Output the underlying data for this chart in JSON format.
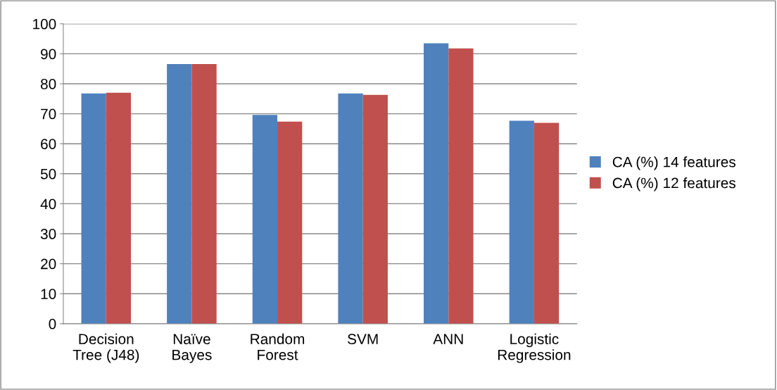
{
  "chart_data": {
    "type": "bar",
    "categories": [
      "Decision\nTree (J48)",
      "Naïve\nBayes",
      "Random\nForest",
      "SVM",
      "ANN",
      "Logistic\nRegression"
    ],
    "series": [
      {
        "name": "CA (%) 14 features",
        "color": "#4f81bd",
        "values": [
          76.8,
          86.6,
          69.6,
          76.8,
          93.5,
          67.7
        ]
      },
      {
        "name": "CA (%) 12 features",
        "color": "#c0504d",
        "values": [
          77.0,
          86.6,
          67.4,
          76.3,
          91.8,
          67.0
        ]
      }
    ],
    "ylim": [
      0,
      100
    ],
    "yticks": [
      0,
      10,
      20,
      30,
      40,
      50,
      60,
      70,
      80,
      90,
      100
    ],
    "grid": "y",
    "legend": "right"
  }
}
